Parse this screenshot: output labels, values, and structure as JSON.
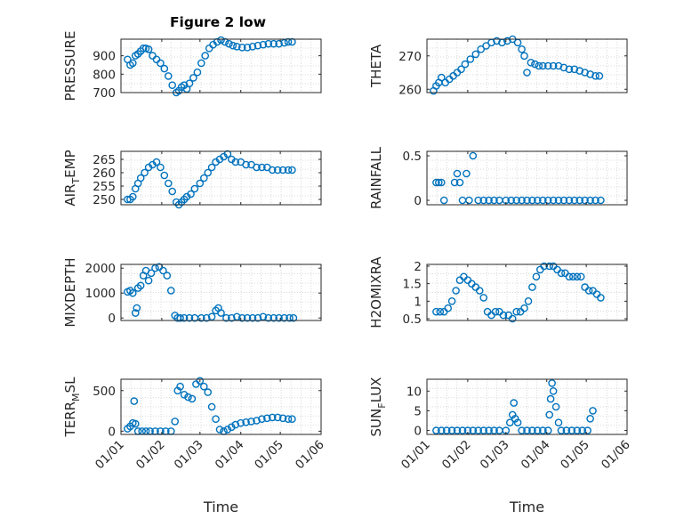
{
  "figure": {
    "title": "Figure 2 low",
    "marker_color": "#0072BD"
  },
  "chart_data": [
    {
      "type": "scatter",
      "id": "pressure",
      "ylabel": "PRESSURE",
      "ylabel_sub": "",
      "ylim": [
        700,
        990
      ],
      "yticks": [
        700,
        800,
        900
      ],
      "ytick_labels": [
        "700",
        "800",
        "900"
      ],
      "xlim": [
        "2000-01-01",
        "2000-06-01"
      ],
      "xticks": [],
      "x": [
        "2000-01-06",
        "2000-01-08",
        "2000-01-10",
        "2000-01-12",
        "2000-01-14",
        "2000-01-16",
        "2000-01-18",
        "2000-01-20",
        "2000-01-22",
        "2000-01-25",
        "2000-01-28",
        "2000-01-31",
        "2000-02-03",
        "2000-02-06",
        "2000-02-09",
        "2000-02-12",
        "2000-02-14",
        "2000-02-16",
        "2000-02-18",
        "2000-02-20",
        "2000-02-22",
        "2000-02-25",
        "2000-02-28",
        "2000-03-02",
        "2000-03-05",
        "2000-03-08",
        "2000-03-11",
        "2000-03-14",
        "2000-03-17",
        "2000-03-20",
        "2000-03-23",
        "2000-03-26",
        "2000-03-29",
        "2000-04-02",
        "2000-04-06",
        "2000-04-10",
        "2000-04-14",
        "2000-04-18",
        "2000-04-22",
        "2000-04-26",
        "2000-04-30",
        "2000-05-04",
        "2000-05-07",
        "2000-05-10"
      ],
      "y": [
        880,
        850,
        860,
        900,
        910,
        925,
        940,
        940,
        935,
        900,
        880,
        860,
        830,
        790,
        740,
        700,
        710,
        730,
        740,
        720,
        750,
        780,
        810,
        860,
        900,
        940,
        960,
        975,
        985,
        975,
        965,
        955,
        950,
        945,
        945,
        950,
        955,
        960,
        965,
        965,
        965,
        970,
        975,
        975
      ]
    },
    {
      "type": "scatter",
      "id": "theta",
      "ylabel": "THETA",
      "ylabel_sub": "",
      "ylim": [
        259,
        275
      ],
      "yticks": [
        260,
        270
      ],
      "ytick_labels": [
        "260",
        "270"
      ],
      "xlim": [
        "2000-01-01",
        "2000-06-01"
      ],
      "xticks": [],
      "x": [
        "2000-01-06",
        "2000-01-08",
        "2000-01-10",
        "2000-01-12",
        "2000-01-15",
        "2000-01-18",
        "2000-01-21",
        "2000-01-24",
        "2000-01-27",
        "2000-01-30",
        "2000-02-03",
        "2000-02-07",
        "2000-02-11",
        "2000-02-15",
        "2000-02-19",
        "2000-02-23",
        "2000-02-27",
        "2000-03-02",
        "2000-03-06",
        "2000-03-10",
        "2000-03-13",
        "2000-03-15",
        "2000-03-17",
        "2000-03-20",
        "2000-03-23",
        "2000-03-26",
        "2000-03-29",
        "2000-04-02",
        "2000-04-06",
        "2000-04-10",
        "2000-04-14",
        "2000-04-18",
        "2000-04-22",
        "2000-04-26",
        "2000-04-30",
        "2000-05-04",
        "2000-05-08",
        "2000-05-11"
      ],
      "y": [
        259.5,
        261,
        262,
        263.5,
        262,
        263,
        264,
        265,
        266,
        267.5,
        269,
        270.5,
        272,
        273,
        274,
        274.5,
        274,
        274.5,
        275,
        274,
        272,
        270,
        265,
        268,
        267.5,
        267,
        267,
        267,
        267,
        267,
        266.5,
        266,
        266,
        265.5,
        265,
        264.5,
        264,
        264
      ]
    },
    {
      "type": "scatter",
      "id": "air_temp",
      "ylabel": "AIR",
      "ylabel_sub": "T",
      "ylabel_tail": "EMP",
      "ylim": [
        248,
        268
      ],
      "yticks": [
        250,
        255,
        260,
        265
      ],
      "ytick_labels": [
        "250",
        "255",
        "260",
        "265"
      ],
      "xlim": [
        "2000-01-01",
        "2000-06-01"
      ],
      "xticks": [],
      "x": [
        "2000-01-06",
        "2000-01-08",
        "2000-01-10",
        "2000-01-12",
        "2000-01-14",
        "2000-01-16",
        "2000-01-19",
        "2000-01-22",
        "2000-01-25",
        "2000-01-28",
        "2000-01-31",
        "2000-02-03",
        "2000-02-06",
        "2000-02-09",
        "2000-02-12",
        "2000-02-14",
        "2000-02-16",
        "2000-02-18",
        "2000-02-20",
        "2000-02-23",
        "2000-02-26",
        "2000-03-01",
        "2000-03-04",
        "2000-03-07",
        "2000-03-10",
        "2000-03-13",
        "2000-03-16",
        "2000-03-19",
        "2000-03-22",
        "2000-03-25",
        "2000-03-28",
        "2000-04-01",
        "2000-04-05",
        "2000-04-09",
        "2000-04-13",
        "2000-04-17",
        "2000-04-21",
        "2000-04-25",
        "2000-04-29",
        "2000-05-03",
        "2000-05-07",
        "2000-05-10"
      ],
      "y": [
        250,
        250,
        251,
        254,
        256,
        258,
        260,
        262,
        263,
        264,
        262,
        259,
        256,
        253,
        249,
        248,
        249,
        250,
        251,
        252,
        254,
        256,
        258,
        260,
        262,
        264,
        265,
        266,
        267,
        265,
        264,
        264,
        263,
        263,
        262,
        262,
        262,
        261,
        261,
        261,
        261,
        261
      ]
    },
    {
      "type": "scatter",
      "id": "rainfall",
      "ylabel": "RAINFALL",
      "ylabel_sub": "",
      "ylim": [
        -0.05,
        0.55
      ],
      "yticks": [
        0,
        0.5
      ],
      "ytick_labels": [
        "0",
        "0.5"
      ],
      "xlim": [
        "2000-01-01",
        "2000-06-01"
      ],
      "xticks": [],
      "x": [
        "2000-01-08",
        "2000-01-10",
        "2000-01-12",
        "2000-01-14",
        "2000-01-22",
        "2000-01-24",
        "2000-01-26",
        "2000-01-28",
        "2000-01-31",
        "2000-02-02",
        "2000-02-05",
        "2000-02-09",
        "2000-02-13",
        "2000-02-17",
        "2000-02-21",
        "2000-02-25",
        "2000-03-01",
        "2000-03-05",
        "2000-03-09",
        "2000-03-13",
        "2000-03-17",
        "2000-03-21",
        "2000-03-25",
        "2000-03-29",
        "2000-04-02",
        "2000-04-06",
        "2000-04-10",
        "2000-04-14",
        "2000-04-18",
        "2000-04-22",
        "2000-04-26",
        "2000-04-30",
        "2000-05-04",
        "2000-05-08",
        "2000-05-12"
      ],
      "y": [
        0.2,
        0.2,
        0.2,
        0,
        0.2,
        0.3,
        0.2,
        0,
        0.3,
        0,
        0.5,
        0,
        0,
        0,
        0,
        0,
        0,
        0,
        0,
        0,
        0,
        0,
        0,
        0,
        0,
        0,
        0,
        0,
        0,
        0,
        0,
        0,
        0,
        0,
        0
      ]
    },
    {
      "type": "scatter",
      "id": "mixdepth",
      "ylabel": "MIXDEPTH",
      "ylabel_sub": "",
      "ylim": [
        -100,
        2150
      ],
      "yticks": [
        0,
        1000,
        2000
      ],
      "ytick_labels": [
        "0",
        "1000",
        "2000"
      ],
      "xlim": [
        "2000-01-01",
        "2000-06-01"
      ],
      "xticks": [],
      "x": [
        "2000-01-06",
        "2000-01-08",
        "2000-01-10",
        "2000-01-12",
        "2000-01-13",
        "2000-01-14",
        "2000-01-16",
        "2000-01-18",
        "2000-01-20",
        "2000-01-22",
        "2000-01-24",
        "2000-01-27",
        "2000-01-30",
        "2000-02-02",
        "2000-02-05",
        "2000-02-08",
        "2000-02-11",
        "2000-02-13",
        "2000-02-15",
        "2000-02-18",
        "2000-02-22",
        "2000-02-26",
        "2000-03-02",
        "2000-03-06",
        "2000-03-10",
        "2000-03-13",
        "2000-03-15",
        "2000-03-17",
        "2000-03-21",
        "2000-03-25",
        "2000-03-29",
        "2000-04-02",
        "2000-04-06",
        "2000-04-10",
        "2000-04-14",
        "2000-04-18",
        "2000-04-22",
        "2000-04-26",
        "2000-04-30",
        "2000-05-04",
        "2000-05-08",
        "2000-05-11"
      ],
      "y": [
        1050,
        1100,
        1000,
        200,
        400,
        1200,
        1300,
        1700,
        1900,
        1500,
        1800,
        2000,
        2050,
        1900,
        1700,
        1100,
        100,
        0,
        0,
        0,
        0,
        0,
        0,
        0,
        50,
        300,
        400,
        200,
        0,
        0,
        50,
        0,
        0,
        0,
        0,
        50,
        0,
        0,
        0,
        0,
        0,
        0
      ]
    },
    {
      "type": "scatter",
      "id": "h2omixra",
      "ylabel": "H2OMIXRA",
      "ylabel_sub": "",
      "ylim": [
        0.45,
        2.05
      ],
      "yticks": [
        0.5,
        1,
        1.5,
        2
      ],
      "ytick_labels": [
        "0.5",
        "1",
        "1.5",
        "2"
      ],
      "xlim": [
        "2000-01-01",
        "2000-06-01"
      ],
      "xticks": [],
      "x": [
        "2000-01-08",
        "2000-01-11",
        "2000-01-14",
        "2000-01-17",
        "2000-01-20",
        "2000-01-23",
        "2000-01-26",
        "2000-01-29",
        "2000-02-01",
        "2000-02-04",
        "2000-02-07",
        "2000-02-10",
        "2000-02-13",
        "2000-02-16",
        "2000-02-19",
        "2000-02-22",
        "2000-02-25",
        "2000-02-28",
        "2000-03-03",
        "2000-03-06",
        "2000-03-09",
        "2000-03-12",
        "2000-03-15",
        "2000-03-18",
        "2000-03-21",
        "2000-03-24",
        "2000-03-27",
        "2000-03-30",
        "2000-04-03",
        "2000-04-06",
        "2000-04-09",
        "2000-04-12",
        "2000-04-15",
        "2000-04-18",
        "2000-04-21",
        "2000-04-24",
        "2000-04-27",
        "2000-04-30",
        "2000-05-03",
        "2000-05-06",
        "2000-05-09",
        "2000-05-12"
      ],
      "y": [
        0.7,
        0.7,
        0.7,
        0.8,
        1.0,
        1.3,
        1.6,
        1.7,
        1.6,
        1.5,
        1.4,
        1.3,
        1.1,
        0.7,
        0.6,
        0.7,
        0.7,
        0.6,
        0.6,
        0.5,
        0.7,
        0.7,
        0.8,
        1.0,
        1.4,
        1.7,
        1.9,
        2.0,
        2.0,
        2.0,
        1.9,
        1.8,
        1.8,
        1.7,
        1.7,
        1.7,
        1.7,
        1.4,
        1.3,
        1.3,
        1.2,
        1.1
      ]
    },
    {
      "type": "scatter",
      "id": "terr_msl",
      "ylabel": "TERR",
      "ylabel_sub": "M",
      "ylabel_tail": "SL",
      "ylim": [
        -40,
        640
      ],
      "yticks": [
        0,
        500
      ],
      "ytick_labels": [
        "0",
        "500"
      ],
      "xlim": [
        "2000-01-01",
        "2000-06-01"
      ],
      "xticks": [
        "2000-01-01",
        "2000-02-01",
        "2000-03-01",
        "2000-04-01",
        "2000-05-01",
        "2000-06-01"
      ],
      "xtick_labels": [
        "01/01",
        "01/02",
        "01/03",
        "01/04",
        "01/05",
        "01/06"
      ],
      "xlabel": "Time",
      "x": [
        "2000-01-06",
        "2000-01-08",
        "2000-01-10",
        "2000-01-11",
        "2000-01-12",
        "2000-01-14",
        "2000-01-17",
        "2000-01-20",
        "2000-01-23",
        "2000-01-27",
        "2000-01-31",
        "2000-02-04",
        "2000-02-08",
        "2000-02-11",
        "2000-02-13",
        "2000-02-15",
        "2000-02-18",
        "2000-02-21",
        "2000-02-24",
        "2000-02-27",
        "2000-03-01",
        "2000-03-04",
        "2000-03-07",
        "2000-03-10",
        "2000-03-13",
        "2000-03-16",
        "2000-03-19",
        "2000-03-22",
        "2000-03-25",
        "2000-03-28",
        "2000-04-01",
        "2000-04-05",
        "2000-04-09",
        "2000-04-13",
        "2000-04-17",
        "2000-04-21",
        "2000-04-25",
        "2000-04-29",
        "2000-05-03",
        "2000-05-07",
        "2000-05-10"
      ],
      "y": [
        30,
        60,
        100,
        370,
        90,
        0,
        0,
        0,
        0,
        0,
        0,
        0,
        0,
        120,
        500,
        550,
        450,
        420,
        400,
        580,
        620,
        550,
        480,
        300,
        150,
        20,
        0,
        20,
        50,
        80,
        100,
        110,
        120,
        130,
        150,
        160,
        170,
        170,
        160,
        150,
        150
      ]
    },
    {
      "type": "scatter",
      "id": "sun_flux",
      "ylabel": "SUN",
      "ylabel_sub": "F",
      "ylabel_tail": "LUX",
      "ylim": [
        -1,
        13
      ],
      "yticks": [
        0,
        5,
        10
      ],
      "ytick_labels": [
        "0",
        "5",
        "10"
      ],
      "xlim": [
        "2000-01-01",
        "2000-06-01"
      ],
      "xticks": [
        "2000-01-01",
        "2000-02-01",
        "2000-03-01",
        "2000-04-01",
        "2000-05-01",
        "2000-06-01"
      ],
      "xtick_labels": [
        "01/01",
        "01/02",
        "01/03",
        "01/04",
        "01/05",
        "01/06"
      ],
      "xlabel": "Time",
      "x": [
        "2000-01-08",
        "2000-01-12",
        "2000-01-16",
        "2000-01-20",
        "2000-01-24",
        "2000-01-28",
        "2000-02-01",
        "2000-02-05",
        "2000-02-09",
        "2000-02-13",
        "2000-02-17",
        "2000-02-21",
        "2000-02-25",
        "2000-03-01",
        "2000-03-04",
        "2000-03-06",
        "2000-03-07",
        "2000-03-08",
        "2000-03-10",
        "2000-03-13",
        "2000-03-17",
        "2000-03-21",
        "2000-03-25",
        "2000-03-29",
        "2000-04-02",
        "2000-04-03",
        "2000-04-04",
        "2000-04-05",
        "2000-04-06",
        "2000-04-08",
        "2000-04-10",
        "2000-04-12",
        "2000-04-16",
        "2000-04-20",
        "2000-04-24",
        "2000-04-28",
        "2000-05-02",
        "2000-05-04",
        "2000-05-06"
      ],
      "y": [
        0,
        0,
        0,
        0,
        0,
        0,
        0,
        0,
        0,
        0,
        0,
        0,
        0,
        0,
        2,
        4,
        7,
        3,
        2,
        0,
        0,
        0,
        0,
        0,
        0,
        4,
        8,
        12,
        10,
        6,
        2,
        0,
        0,
        0,
        0,
        0,
        0,
        3,
        5
      ]
    }
  ]
}
